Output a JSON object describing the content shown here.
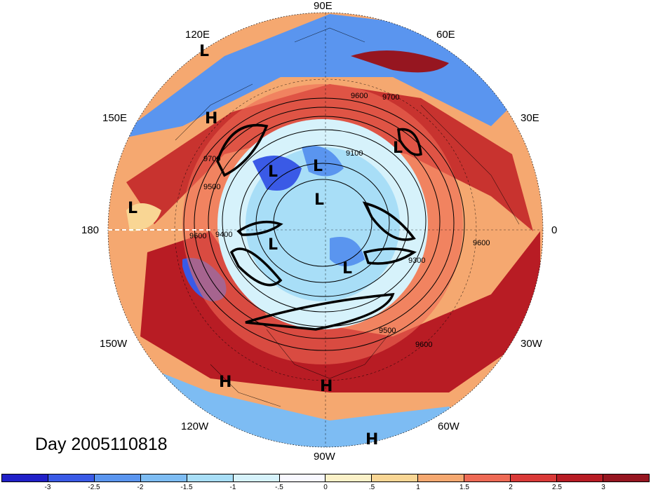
{
  "title": "Day 2005110818",
  "lon_labels": [
    "90E",
    "60E",
    "30E",
    "0",
    "30W",
    "60W",
    "90W",
    "120W",
    "150W",
    "180",
    "150E",
    "120E"
  ],
  "contour_labels": [
    "9600",
    "9700",
    "9100",
    "9500",
    "9400",
    "9300",
    "9700",
    "9500",
    "9600",
    "9600",
    "9600"
  ],
  "pressure_centers": [
    "L",
    "H",
    "L",
    "L",
    "L",
    "L",
    "L",
    "L",
    "L",
    "H",
    "H",
    "H"
  ],
  "colorbar": {
    "ticks": [
      "-3",
      "-2.5",
      "-2",
      "-1.5",
      "-1",
      "-.5",
      "0",
      ".5",
      "1",
      "1.5",
      "2",
      "2.5",
      "3"
    ],
    "colors": [
      "#2020c8",
      "#3a5ae6",
      "#5a95ef",
      "#7dbcf3",
      "#a8def7",
      "#d6f2fb",
      "#f8f8ff",
      "#fbf1c8",
      "#f9d694",
      "#f5a870",
      "#ee6a55",
      "#da3a38",
      "#b81c24",
      "#961620"
    ]
  }
}
